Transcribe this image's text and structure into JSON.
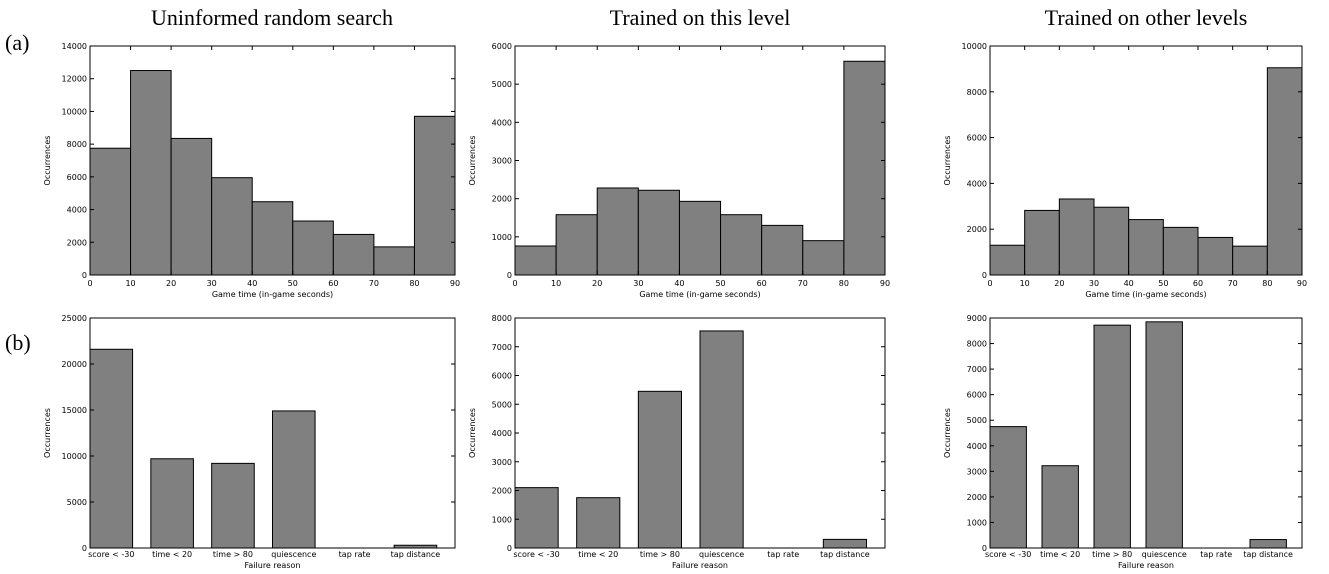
{
  "column_titles": [
    "Uninformed random search",
    "Trained on this level",
    "Trained on other levels"
  ],
  "row_labels": [
    "(a)",
    "(b)"
  ],
  "chart_data": [
    {
      "type": "histogram",
      "bins": [
        0,
        10,
        20,
        30,
        40,
        50,
        60,
        70,
        80,
        90
      ],
      "values": [
        7750,
        12500,
        8350,
        5950,
        4480,
        3300,
        2480,
        1720,
        9700
      ],
      "color": "#808080",
      "xlim": [
        0,
        90
      ],
      "xticks": [
        0,
        10,
        20,
        30,
        40,
        50,
        60,
        70,
        80,
        90
      ],
      "ylim": [
        0,
        14000
      ],
      "yticks": [
        0,
        2000,
        4000,
        6000,
        8000,
        10000,
        12000,
        14000
      ],
      "xlabel": "Game time (in-game seconds)",
      "ylabel": "Occurrences"
    },
    {
      "type": "histogram",
      "bins": [
        0,
        10,
        20,
        30,
        40,
        50,
        60,
        70,
        80,
        90
      ],
      "values": [
        760,
        1580,
        2280,
        2220,
        1930,
        1580,
        1300,
        900,
        5600
      ],
      "color": "#808080",
      "xlim": [
        0,
        90
      ],
      "xticks": [
        0,
        10,
        20,
        30,
        40,
        50,
        60,
        70,
        80,
        90
      ],
      "ylim": [
        0,
        6000
      ],
      "yticks": [
        0,
        1000,
        2000,
        3000,
        4000,
        5000,
        6000
      ],
      "xlabel": "Game time (in-game seconds)",
      "ylabel": "Occurrences"
    },
    {
      "type": "histogram",
      "bins": [
        0,
        10,
        20,
        30,
        40,
        50,
        60,
        70,
        80,
        90
      ],
      "values": [
        1300,
        2820,
        3320,
        2960,
        2420,
        2080,
        1640,
        1260,
        9050
      ],
      "color": "#808080",
      "xlim": [
        0,
        90
      ],
      "xticks": [
        0,
        10,
        20,
        30,
        40,
        50,
        60,
        70,
        80,
        90
      ],
      "ylim": [
        0,
        10000
      ],
      "yticks": [
        0,
        2000,
        4000,
        6000,
        8000,
        10000
      ],
      "xlabel": "Game time (in-game seconds)",
      "ylabel": "Occurrences"
    },
    {
      "type": "bar",
      "categories": [
        "score < -30",
        "time < 20",
        "time > 80",
        "quiescence",
        "tap rate",
        "tap distance"
      ],
      "values": [
        21600,
        9700,
        9200,
        14900,
        0,
        300
      ],
      "color": "#808080",
      "ylim": [
        0,
        25000
      ],
      "yticks": [
        0,
        5000,
        10000,
        15000,
        20000,
        25000
      ],
      "xlabel": "Failure reason",
      "ylabel": "Occurrences"
    },
    {
      "type": "bar",
      "categories": [
        "score < -30",
        "time < 20",
        "time > 80",
        "quiescence",
        "tap rate",
        "tap distance"
      ],
      "values": [
        2100,
        1750,
        5450,
        7550,
        0,
        300
      ],
      "color": "#808080",
      "ylim": [
        0,
        8000
      ],
      "yticks": [
        0,
        1000,
        2000,
        3000,
        4000,
        5000,
        6000,
        7000,
        8000
      ],
      "xlabel": "Failure reason",
      "ylabel": "Occurrences"
    },
    {
      "type": "bar",
      "categories": [
        "score < -30",
        "time < 20",
        "time > 80",
        "quiescence",
        "tap rate",
        "tap distance"
      ],
      "values": [
        4750,
        3220,
        8720,
        8850,
        0,
        330
      ],
      "color": "#808080",
      "ylim": [
        0,
        9000
      ],
      "yticks": [
        0,
        1000,
        2000,
        3000,
        4000,
        5000,
        6000,
        7000,
        8000,
        9000
      ],
      "xlabel": "Failure reason",
      "ylabel": "Occurrences"
    }
  ]
}
